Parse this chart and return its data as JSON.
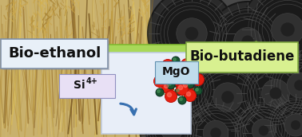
{
  "figsize": [
    3.78,
    1.72
  ],
  "dpi": 100,
  "bio_ethanol_label": "Bio-ethanol",
  "bio_butadiene_label": "Bio-butadiene",
  "mgo_label": "MgO",
  "si_label": "Si",
  "si_superscript": "4+",
  "arrow_color": "#a8d858",
  "arrow_edge_color": "#80b830",
  "label_bg_ethanol": "#d8e8f5",
  "label_bg_butadiene": "#d8f0a0",
  "label_bg_mgo": "#b8dce8",
  "label_bg_si": "#e0daf0",
  "crystal_red": "#e82010",
  "crystal_dark_red": "#c01008",
  "crystal_green": "#1a5530",
  "crystal_dark_green": "#0a3020",
  "crystal_line": "#60a840",
  "curve_arrow_color": "#3870b0",
  "crystal_bg": "#e8eef8",
  "crystal_edge": "#c0cce0"
}
